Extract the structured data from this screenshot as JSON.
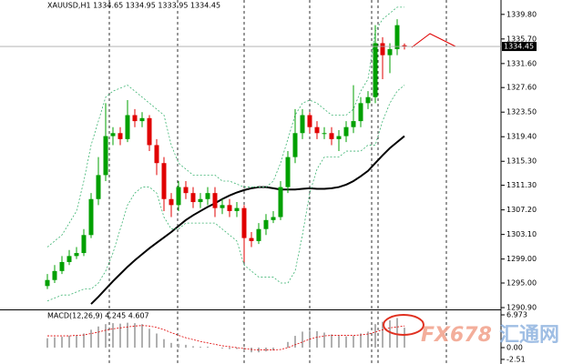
{
  "chart_data": [
    {
      "type": "candlestick",
      "title": "XAUUSD,H1  1334.65 1334.95 1333.95 1334.45",
      "up_color": "#00a000",
      "down_color": "#e00000",
      "open": [
        1294.5,
        1295.5,
        1297,
        1298.5,
        1299.5,
        1300,
        1303,
        1309,
        1313,
        1319.5,
        1320,
        1319,
        1323,
        1322,
        1322.5,
        1318,
        1315,
        1309,
        1308,
        1311,
        1310,
        1308.5,
        1309,
        1310,
        1307.5,
        1308,
        1307,
        1307.5,
        1302.5,
        1302,
        1304,
        1305.5,
        1306,
        1311,
        1316,
        1320,
        1323,
        1321,
        1320,
        1320,
        1319,
        1319.5,
        1321,
        1322,
        1325,
        1326,
        1335,
        1333,
        1334,
        1334.65
      ],
      "high": [
        1296.5,
        1298,
        1299.5,
        1300.5,
        1301,
        1304,
        1310,
        1316,
        1325,
        1321,
        1321,
        1325.5,
        1324,
        1323.5,
        1323,
        1319,
        1316,
        1310,
        1312,
        1312,
        1311,
        1310,
        1311,
        1311,
        1309,
        1309,
        1308.5,
        1308,
        1303.5,
        1305,
        1306.5,
        1307,
        1312,
        1317,
        1324,
        1324,
        1323.5,
        1322,
        1321,
        1321,
        1320.5,
        1322,
        1328,
        1326,
        1327,
        1338,
        1336,
        1335,
        1339,
        1334.95
      ],
      "low": [
        1294,
        1295,
        1296.5,
        1298,
        1299,
        1299.5,
        1302.5,
        1308,
        1312,
        1318,
        1318,
        1318.5,
        1321,
        1321,
        1317,
        1313,
        1307,
        1306,
        1307,
        1309,
        1307.5,
        1307.5,
        1308,
        1306,
        1306.5,
        1306,
        1306,
        1298.5,
        1301,
        1301.5,
        1303,
        1305,
        1305.5,
        1310,
        1315,
        1319,
        1320,
        1319,
        1319,
        1318,
        1317,
        1318.5,
        1320,
        1321,
        1324,
        1325,
        1329,
        1330,
        1333,
        1333.95
      ],
      "close": [
        1295.5,
        1297,
        1298.5,
        1299.5,
        1300,
        1303,
        1309,
        1313,
        1319.5,
        1320,
        1319,
        1323,
        1322,
        1322.5,
        1318,
        1315,
        1309,
        1308,
        1311,
        1310,
        1308.5,
        1309,
        1310,
        1307.5,
        1308,
        1307,
        1307.5,
        1302.5,
        1302,
        1304,
        1305.5,
        1306,
        1311,
        1316,
        1320,
        1323,
        1321,
        1320,
        1320,
        1319,
        1319.5,
        1321,
        1322,
        1325,
        1326,
        1335,
        1333,
        1334,
        1338,
        1334.45
      ],
      "series": [
        {
          "color": "#000000",
          "values": [
            null,
            null,
            null,
            null,
            null,
            null,
            1291.5,
            1292.7,
            1294,
            1295.3,
            1296.5,
            1297.7,
            1298.8,
            1299.8,
            1300.8,
            1301.7,
            1302.6,
            1303.5,
            1304.5,
            1305.5,
            1306.3,
            1307,
            1307.7,
            1308.3,
            1309,
            1309.6,
            1310.1,
            1310.5,
            1310.8,
            1311,
            1311,
            1310.8,
            1310.6,
            1310.6,
            1310.6,
            1310.7,
            1310.8,
            1310.7,
            1310.7,
            1310.8,
            1311,
            1311.4,
            1312,
            1312.8,
            1313.7,
            1315,
            1316.3,
            1317.5,
            1318.5,
            1319.5
          ]
        },
        {
          "color": "#3cb371",
          "values": [
            1301,
            1302,
            1303,
            1305,
            1307,
            1312,
            1318,
            1322,
            1326,
            1327,
            1327.5,
            1328,
            1327,
            1326,
            1325,
            1324,
            1323,
            1318,
            1315,
            1314,
            1313,
            1313,
            1313,
            1313,
            1312,
            1312,
            1311.5,
            1311,
            1311,
            1311,
            1311,
            1312,
            1315,
            1319,
            1323,
            1325,
            1325.5,
            1325,
            1324,
            1323,
            1323,
            1323,
            1324,
            1327,
            1329,
            1337,
            1339,
            1340,
            1341,
            1341
          ]
        },
        {
          "color": "#3cb371",
          "values": [
            1292,
            1292.5,
            1293,
            1293,
            1293.5,
            1294,
            1294,
            1295,
            1297,
            1300,
            1304,
            1308,
            1310,
            1311,
            1311,
            1310,
            1306,
            1304,
            1304,
            1305,
            1305,
            1305,
            1305,
            1305,
            1304,
            1303,
            1302,
            1298,
            1297,
            1296,
            1296,
            1296,
            1295,
            1295,
            1297,
            1303,
            1310,
            1314,
            1316,
            1316,
            1316,
            1317,
            1317,
            1317,
            1318,
            1318,
            1322,
            1325,
            1327,
            1328
          ]
        }
      ],
      "current_price": 1334.45,
      "ylim": [
        1290.6,
        1342.2
      ],
      "yticks": [
        {
          "value": 1339.8,
          "label": "1339.80"
        },
        {
          "value": 1335.7,
          "label": "1335.70"
        },
        {
          "value": 1331.6,
          "label": "1331.60"
        },
        {
          "value": 1327.6,
          "label": "1327.60"
        },
        {
          "value": 1323.5,
          "label": "1323.50"
        },
        {
          "value": 1319.4,
          "label": "1319.40"
        },
        {
          "value": 1315.3,
          "label": "1315.30"
        },
        {
          "value": 1311.3,
          "label": "1311.30"
        },
        {
          "value": 1307.2,
          "label": "1307.20"
        },
        {
          "value": 1303.1,
          "label": "1303.10"
        },
        {
          "value": 1299,
          "label": "1299.00"
        },
        {
          "value": 1295,
          "label": "1295.00"
        },
        {
          "value": 1290.9,
          "label": "1290.90"
        }
      ]
    },
    {
      "type": "macd",
      "title": "MACD(12,26,9) 4.245 4.607",
      "histogram": {
        "color": "#b0b0b0",
        "values": [
          2,
          2.2,
          2.3,
          2.5,
          2.6,
          3,
          3.8,
          4.5,
          5,
          5.2,
          5.1,
          5.3,
          5.2,
          5,
          4,
          3,
          1.8,
          1,
          0.8,
          0.6,
          0.3,
          0.2,
          0.2,
          0,
          -0.2,
          -0.3,
          -0.3,
          -0.8,
          -1,
          -1,
          -0.8,
          -0.6,
          0,
          1.2,
          2.5,
          3.4,
          3.6,
          3.5,
          3.2,
          2.8,
          2.5,
          2.4,
          2.5,
          3,
          3.4,
          5,
          5.5,
          5.8,
          6.3,
          4.245
        ]
      },
      "signal": {
        "color": "#e00000",
        "values": [
          2.5,
          2.5,
          2.5,
          2.5,
          2.6,
          2.7,
          3,
          3.3,
          3.7,
          4,
          4.2,
          4.4,
          4.6,
          4.7,
          4.6,
          4.3,
          3.8,
          3.2,
          2.6,
          2.1,
          1.7,
          1.3,
          1,
          0.7,
          0.4,
          0.2,
          0,
          -0.2,
          -0.4,
          -0.5,
          -0.5,
          -0.5,
          -0.4,
          0,
          0.6,
          1.2,
          1.8,
          2.2,
          2.5,
          2.6,
          2.6,
          2.6,
          2.6,
          2.7,
          2.9,
          3.3,
          3.8,
          4.2,
          4.4,
          4.607
        ]
      },
      "ylim": [
        -3.49,
        7.94
      ],
      "yticks": [
        6.973,
        {
          "value": 0,
          "label": "0.00"
        },
        -2.51
      ]
    }
  ],
  "watermark": {
    "latin": "FX678",
    "chinese": "汇通网"
  }
}
